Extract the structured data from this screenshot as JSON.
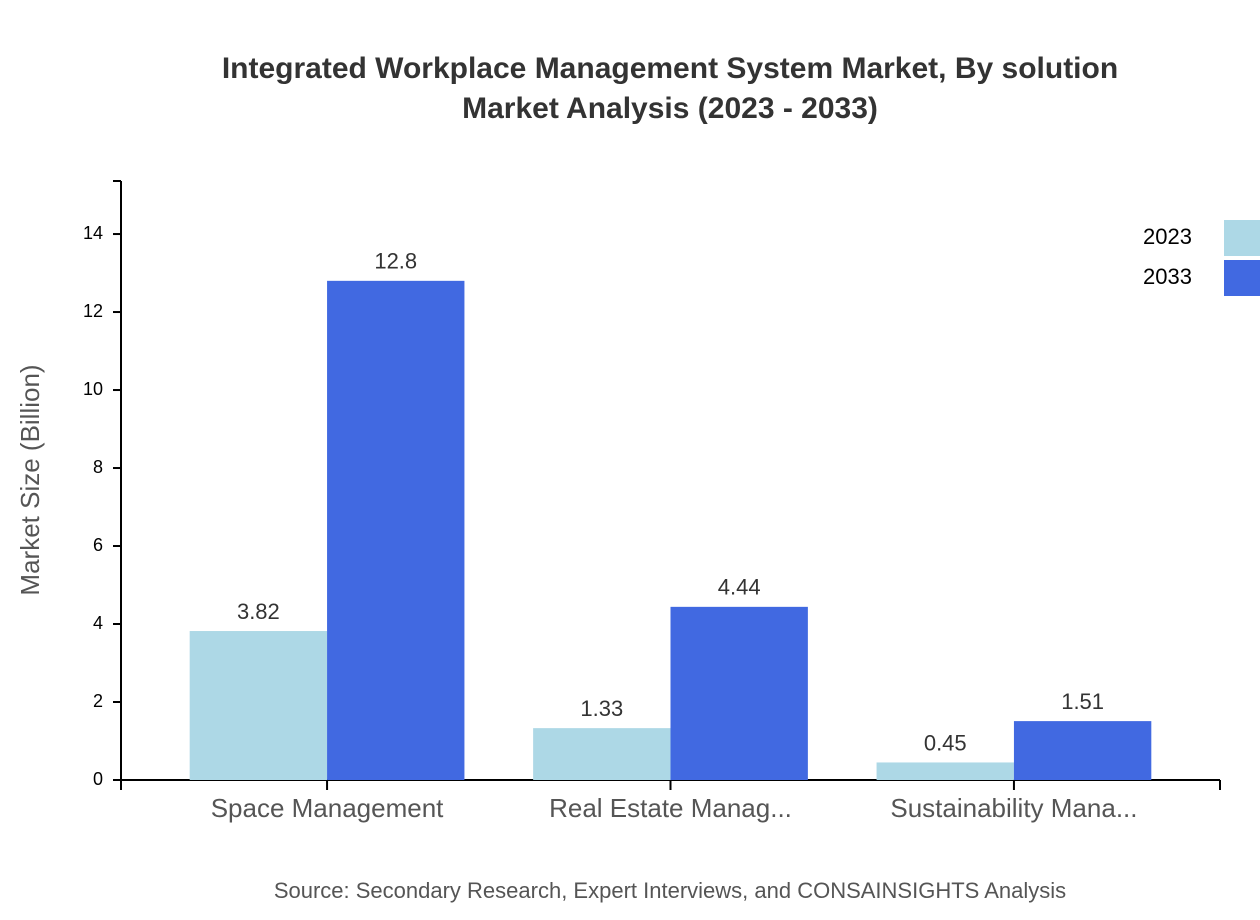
{
  "chart_data": {
    "type": "bar",
    "title": "Integrated Workplace Management System Market, By solution",
    "subtitle": "Market Analysis (2023 - 2033)",
    "y_label": "Market Size (Billion)",
    "source": "Source: Secondary Research, Expert Interviews, and CONSAINSIGHTS Analysis",
    "categories": [
      "Space Management",
      "Real Estate Manag...",
      "Sustainability Mana..."
    ],
    "series": [
      {
        "name": "2023",
        "color": "#add8e6",
        "values": [
          3.82,
          1.33,
          0.45
        ]
      },
      {
        "name": "2033",
        "color": "#4169e1",
        "values": [
          12.8,
          4.44,
          1.51
        ]
      }
    ],
    "ylim": [
      0,
      15.36
    ],
    "yticks": [
      0,
      2,
      4,
      6,
      8,
      10,
      12,
      14
    ],
    "legend": "top-right"
  }
}
